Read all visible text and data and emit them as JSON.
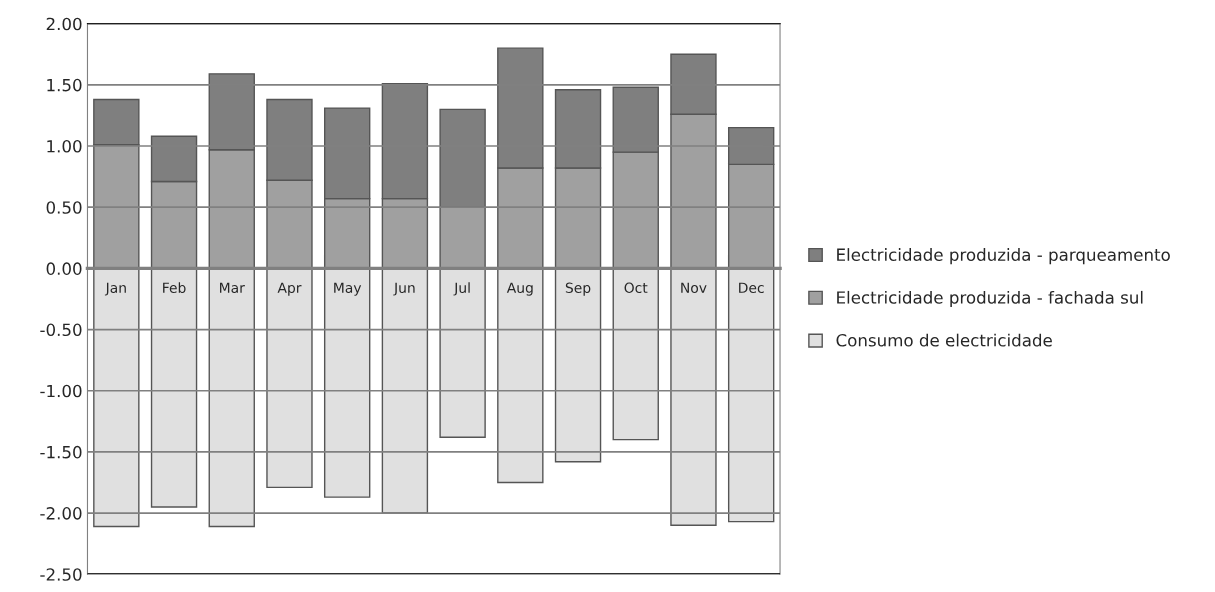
{
  "chart_data": {
    "type": "bar",
    "stacked": true,
    "categories": [
      "Jan",
      "Feb",
      "Mar",
      "Apr",
      "May",
      "Jun",
      "Jul",
      "Aug",
      "Sep",
      "Oct",
      "Nov",
      "Dec"
    ],
    "series": [
      {
        "name": "Electricidade produzida - fachada sul",
        "color": "#a0a0a0",
        "values": [
          1.01,
          0.71,
          0.97,
          0.72,
          0.57,
          0.57,
          0.5,
          0.82,
          0.82,
          0.95,
          1.26,
          0.85
        ]
      },
      {
        "name": "Electricidade produzida - parqueamento",
        "color": "#7f7f7f",
        "values": [
          0.37,
          0.37,
          0.62,
          0.66,
          0.74,
          0.94,
          0.8,
          0.98,
          0.64,
          0.53,
          0.49,
          0.3
        ]
      },
      {
        "name": "Consumo de electricidade",
        "color": "#e0e0e0",
        "values": [
          -2.11,
          -1.95,
          -2.11,
          -1.79,
          -1.87,
          -2.0,
          -1.38,
          -1.75,
          -1.58,
          -1.4,
          -2.1,
          -2.07
        ]
      }
    ],
    "ylim": [
      -2.5,
      2.0
    ],
    "yticks": [
      {
        "value": -2.5,
        "label": "-2.50"
      },
      {
        "value": -2.0,
        "label": "-2.00"
      },
      {
        "value": -1.5,
        "label": "-1.50"
      },
      {
        "value": -1.0,
        "label": "-1.00"
      },
      {
        "value": -0.5,
        "label": "-0.50"
      },
      {
        "value": 0,
        "label": "0.00"
      },
      {
        "value": 0.5,
        "label": "0.50"
      },
      {
        "value": 1.0,
        "label": "1.00"
      },
      {
        "value": 1.5,
        "label": "1.50"
      },
      {
        "value": 2.0,
        "label": "2.00"
      }
    ],
    "grid": "y",
    "legend": "right"
  }
}
